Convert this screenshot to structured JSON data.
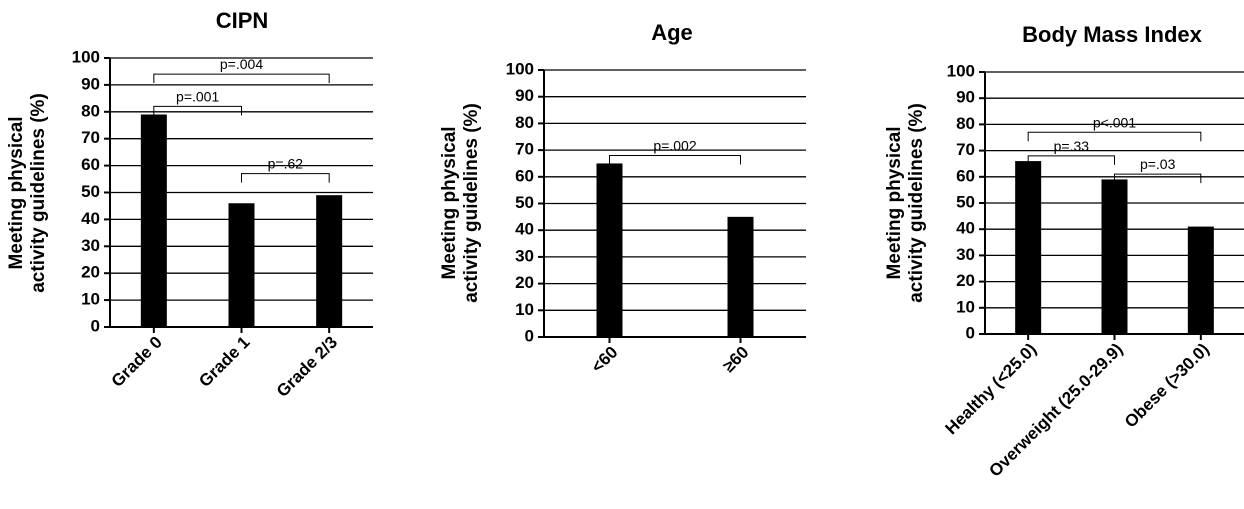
{
  "chart_data": [
    {
      "type": "bar",
      "title": "CIPN",
      "ylabel": [
        "Meeting physical",
        "activity guidelines (%)"
      ],
      "categories": [
        "Grade 0",
        "Grade 1",
        "Grade 2/3"
      ],
      "values": [
        79,
        46,
        49
      ],
      "ylim": [
        0,
        100
      ],
      "yticks": [
        "0",
        "10",
        "20",
        "30",
        "40",
        "50",
        "60",
        "70",
        "80",
        "90",
        "100"
      ],
      "grid": true,
      "bar_color": "#000000",
      "annotations": [
        {
          "from": 0,
          "to": 2,
          "y": 94,
          "text": "p=.004"
        },
        {
          "from": 0,
          "to": 1,
          "y": 82,
          "text": "p=.001"
        },
        {
          "from": 1,
          "to": 2,
          "y": 57,
          "text": "p=.62"
        }
      ]
    },
    {
      "type": "bar",
      "title": "Age",
      "ylabel": [
        "Meeting physical",
        "activity guidelines (%)"
      ],
      "categories": [
        "<60",
        "≥60"
      ],
      "values": [
        65,
        45
      ],
      "ylim": [
        0,
        100
      ],
      "yticks": [
        "0",
        "10",
        "20",
        "30",
        "40",
        "50",
        "60",
        "70",
        "80",
        "90",
        "100"
      ],
      "grid": true,
      "bar_color": "#000000",
      "annotations": [
        {
          "from": 0,
          "to": 1,
          "y": 68,
          "text": "p=.002"
        }
      ]
    },
    {
      "type": "bar",
      "title": "Body Mass Index",
      "ylabel": [
        "Meeting physical",
        "activity guidelines (%)"
      ],
      "categories": [
        "Healthy (<25.0)",
        "Overweight (25.0-29.9)",
        "Obese (>30.0)"
      ],
      "values": [
        66,
        59,
        41
      ],
      "ylim": [
        0,
        100
      ],
      "yticks": [
        "0",
        "10",
        "20",
        "30",
        "40",
        "50",
        "60",
        "70",
        "80",
        "90",
        "100"
      ],
      "grid": true,
      "bar_color": "#000000",
      "annotations": [
        {
          "from": 0,
          "to": 2,
          "y": 77,
          "text": "p<.001"
        },
        {
          "from": 0,
          "to": 1,
          "y": 68,
          "text": "p=.33"
        },
        {
          "from": 1,
          "to": 2,
          "y": 61,
          "text": "p=.03"
        }
      ]
    }
  ]
}
